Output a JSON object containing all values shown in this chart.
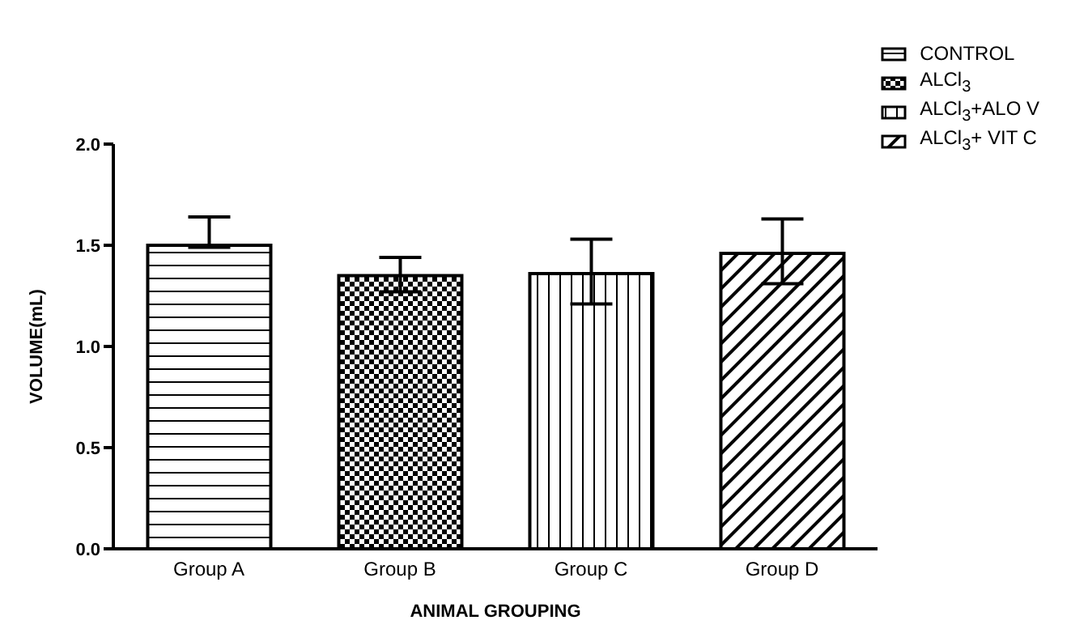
{
  "chart_data": {
    "type": "bar",
    "xlabel": "ANIMAL GROUPING",
    "ylabel": "VOLUME(mL)",
    "categories": [
      "Group A",
      "Group B",
      "Group C",
      "Group D"
    ],
    "series": [
      {
        "name": "CONTROL",
        "color": "#000000",
        "values": [
          1.5,
          null,
          null,
          null
        ],
        "errors": [
          [
            1.49,
            1.64
          ],
          null,
          null,
          null
        ]
      },
      {
        "name": "ALCl$_{3}$",
        "color": "#000000",
        "values": [
          null,
          1.35,
          null,
          null
        ],
        "errors": [
          null,
          [
            1.27,
            1.44
          ],
          null,
          null
        ]
      },
      {
        "name": "ALCl$_{3}$+ALO V",
        "color": "#000000",
        "values": [
          null,
          null,
          1.36,
          null
        ],
        "errors": [
          null,
          null,
          [
            1.21,
            1.53
          ],
          null
        ]
      },
      {
        "name": "ALCl$_{3}$+ VIT C",
        "color": "#000000",
        "values": [
          null,
          null,
          null,
          1.46
        ],
        "errors": [
          null,
          null,
          null,
          [
            1.31,
            1.63
          ]
        ]
      }
    ],
    "ylim": [
      0,
      2
    ],
    "yticks": [
      {
        "value": 0,
        "label": "0.0"
      },
      {
        "value": 0.5,
        "label": "0.5"
      },
      {
        "value": 1,
        "label": "1.0"
      },
      {
        "value": 1.5,
        "label": "1.5"
      },
      {
        "value": 2,
        "label": "2.0"
      }
    ],
    "grid": false,
    "legend": "top right"
  }
}
